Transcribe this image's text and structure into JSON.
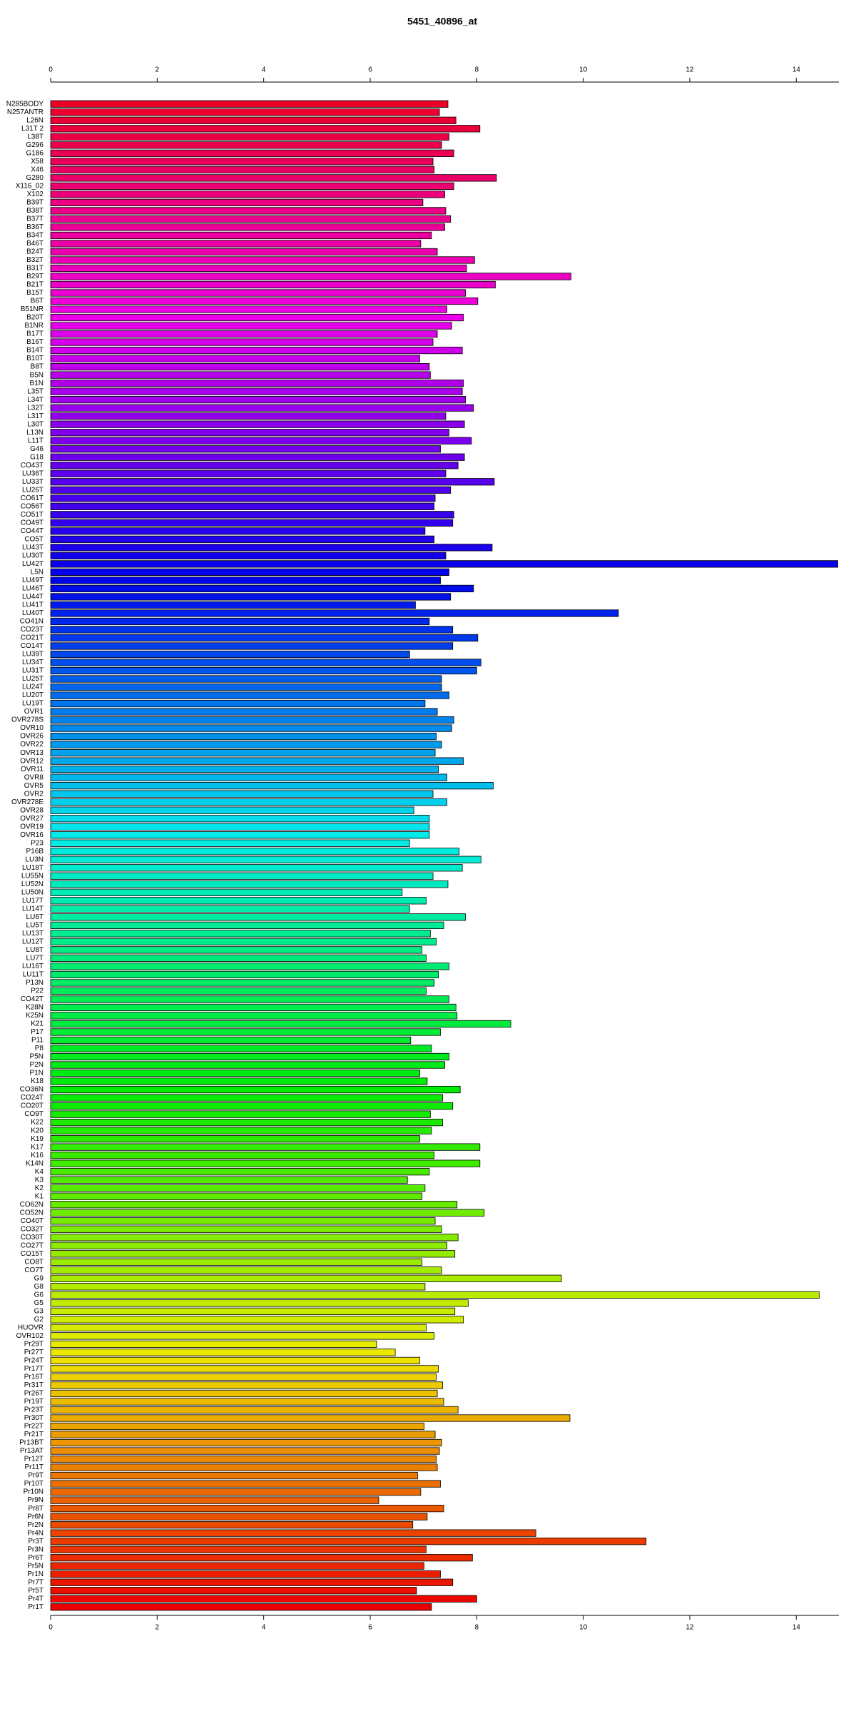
{
  "chart_data": {
    "type": "barh",
    "title": "5451_40896_at",
    "categories": [
      "N285BODY",
      "N257ANTR",
      "L26N",
      "L31T 2",
      "L38T",
      "G296",
      "G186",
      "X58",
      "X46",
      "G280",
      "X116_02",
      "X102",
      "B39T",
      "B38T",
      "B37T",
      "B36T",
      "B34T",
      "B46T",
      "B24T",
      "B32T",
      "B31T",
      "B29T",
      "B21T",
      "B15T",
      "B6T",
      "B51NR",
      "B20T",
      "B1NR",
      "B17T",
      "B16T",
      "B14T",
      "B10T",
      "B8T",
      "B5N",
      "B1N",
      "L35T",
      "L34T",
      "L32T",
      "L31T",
      "L30T",
      "L13N",
      "L11T",
      "G46",
      "G18",
      "CO43T",
      "LU36T",
      "LU33T",
      "LU26T",
      "CO61T",
      "CO56T",
      "CO51T",
      "CO49T",
      "CO44T",
      "CO5T",
      "LU43T",
      "LU30T",
      "LU42T",
      "L5N",
      "LU49T",
      "LU46T",
      "LU44T",
      "LU41T",
      "LU40T",
      "CO41N",
      "CO23T",
      "CO21T",
      "CO14T",
      "LU39T",
      "LU34T",
      "LU31T",
      "LU25T",
      "LU24T",
      "LU20T",
      "LU19T",
      "OVR1",
      "OVR278S",
      "OVR10",
      "OVR26",
      "OVR22",
      "OVR13",
      "OVR12",
      "OVR11",
      "OVR8",
      "OVR5",
      "OVR2",
      "OVR278E",
      "OVR28",
      "OVR27",
      "OVR19",
      "OVR16",
      "P23",
      "P16B",
      "LU3N",
      "LU18T",
      "LU55N",
      "LU52N",
      "LU50N",
      "LU17T",
      "LU14T",
      "LU6T",
      "LU5T",
      "LU13T",
      "LU12T",
      "LU8T",
      "LU7T",
      "LU16T",
      "LU11T",
      "P13N",
      "P22",
      "CO42T",
      "K28N",
      "K25N",
      "K21",
      "P17",
      "P11",
      "P8",
      "P5N",
      "P2N",
      "P1N",
      "K18",
      "CO36N",
      "CO24T",
      "CO20T",
      "CO9T",
      "K22",
      "K20",
      "K19",
      "K17",
      "K16",
      "K14N",
      "K4",
      "K3",
      "K2",
      "K1",
      "CO62N",
      "CO52N",
      "CO40T",
      "CO32T",
      "CO30T",
      "CO27T",
      "CO15T",
      "CO8T",
      "CO7T",
      "G9",
      "G8",
      "G6",
      "G5",
      "G3",
      "G2",
      "HUOVR",
      "OVR102",
      "Pr29T",
      "Pr27T",
      "Pr24T",
      "Pr17T",
      "Pr16T",
      "Pr31T",
      "Pr26T",
      "Pr19T",
      "Pr23T",
      "Pr30T",
      "Pr22T",
      "Pr21T",
      "Pr13BT",
      "Pr13AT",
      "Pr12T",
      "Pr11T",
      "Pr9T",
      "Pr10T",
      "Pr10N",
      "Pr9N",
      "Pr8T",
      "Pr6N",
      "Pr2N",
      "Pr4N",
      "Pr3T",
      "Pr3N",
      "Pr6T",
      "Pr5N",
      "Pr1N",
      "Pr7T",
      "Pr5T",
      "Pr4T",
      "Pr1T"
    ],
    "values": [
      7.46,
      7.3,
      7.61,
      8.06,
      7.48,
      7.34,
      7.57,
      7.18,
      7.2,
      8.37,
      7.57,
      7.4,
      6.99,
      7.42,
      7.51,
      7.4,
      7.15,
      6.95,
      7.26,
      7.96,
      7.81,
      9.77,
      8.35,
      7.79,
      8.02,
      7.44,
      7.75,
      7.53,
      7.26,
      7.18,
      7.73,
      6.93,
      7.11,
      7.13,
      7.75,
      7.73,
      7.79,
      7.94,
      7.42,
      7.77,
      7.48,
      7.9,
      7.32,
      7.77,
      7.65,
      7.42,
      8.33,
      7.51,
      7.22,
      7.2,
      7.57,
      7.55,
      7.03,
      7.2,
      8.29,
      7.42,
      14.78,
      7.48,
      7.32,
      7.94,
      7.51,
      6.85,
      10.66,
      7.11,
      7.55,
      8.02,
      7.55,
      6.74,
      8.08,
      8.0,
      7.34,
      7.34,
      7.48,
      7.03,
      7.26,
      7.57,
      7.53,
      7.24,
      7.34,
      7.22,
      7.75,
      7.28,
      7.44,
      8.31,
      7.18,
      7.44,
      6.82,
      7.11,
      7.11,
      7.11,
      6.74,
      7.67,
      8.08,
      7.73,
      7.18,
      7.46,
      6.6,
      7.05,
      6.74,
      7.79,
      7.38,
      7.13,
      7.24,
      6.97,
      7.05,
      7.48,
      7.28,
      7.2,
      7.05,
      7.48,
      7.61,
      7.63,
      8.64,
      7.32,
      6.76,
      7.15,
      7.48,
      7.4,
      6.93,
      7.07,
      7.69,
      7.36,
      7.55,
      7.13,
      7.36,
      7.15,
      6.93,
      8.06,
      7.2,
      8.06,
      7.11,
      6.7,
      7.03,
      6.97,
      7.63,
      8.14,
      7.22,
      7.34,
      7.65,
      7.44,
      7.59,
      6.97,
      7.34,
      9.59,
      7.03,
      14.43,
      7.84,
      7.59,
      7.75,
      7.05,
      7.2,
      6.12,
      6.47,
      6.93,
      7.28,
      7.24,
      7.36,
      7.26,
      7.38,
      7.65,
      9.75,
      7.01,
      7.22,
      7.34,
      7.3,
      7.24,
      7.26,
      6.89,
      7.32,
      6.95,
      6.16,
      7.38,
      7.07,
      6.8,
      9.11,
      11.18,
      7.05,
      7.92,
      7.01,
      7.32,
      7.55,
      6.87,
      8.0,
      7.15
    ],
    "color_hue_range": [
      350,
      0
    ],
    "xlim": [
      0,
      14.8
    ],
    "xticks": [
      0,
      2,
      4,
      6,
      8,
      10,
      12,
      14
    ]
  }
}
